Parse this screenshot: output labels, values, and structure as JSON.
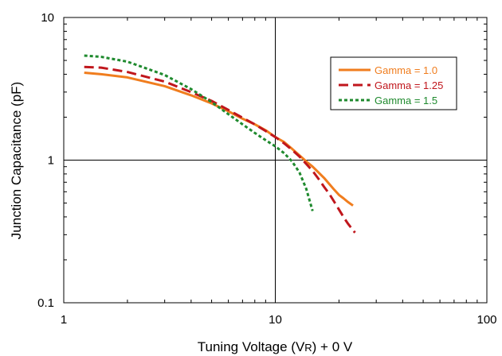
{
  "chart_data": {
    "type": "line",
    "xscale": "log",
    "yscale": "log",
    "xlim": [
      1,
      100
    ],
    "ylim": [
      0.1,
      10
    ],
    "xticks": [
      1,
      10,
      100
    ],
    "yticks": [
      0.1,
      1,
      10
    ],
    "xtick_labels": [
      "1",
      "10",
      "100"
    ],
    "ytick_labels": [
      "0.1",
      "1",
      "10"
    ],
    "xlabel_main": "Tuning Voltage (V",
    "xlabel_sub": "R",
    "xlabel_tail": ") + 0 V",
    "ylabel": "Junction Capacitance (pF)",
    "grid": "major lines at x=10 and y=1",
    "legend_position": "top-right",
    "series": [
      {
        "name": "Gamma = 1.0",
        "color": "#F07D1E",
        "style": "solid",
        "x": [
          1.25,
          1.5,
          2,
          3,
          4,
          5,
          6,
          7,
          8,
          9,
          10,
          11,
          12,
          13,
          14,
          15,
          16,
          17,
          18,
          19,
          20,
          21,
          22,
          23.3
        ],
        "y": [
          4.1,
          4.0,
          3.8,
          3.3,
          2.85,
          2.5,
          2.2,
          1.95,
          1.78,
          1.62,
          1.45,
          1.34,
          1.2,
          1.08,
          0.98,
          0.9,
          0.82,
          0.75,
          0.68,
          0.62,
          0.57,
          0.54,
          0.51,
          0.48
        ]
      },
      {
        "name": "Gamma = 1.25",
        "color": "#C0161C",
        "style": "dashed",
        "x": [
          1.25,
          1.5,
          2,
          3,
          4,
          5,
          6,
          7,
          8,
          9,
          10,
          11,
          12,
          13,
          14,
          15,
          16,
          17,
          18,
          19,
          20,
          21,
          22,
          23.8
        ],
        "y": [
          4.5,
          4.45,
          4.15,
          3.55,
          3.0,
          2.6,
          2.25,
          1.98,
          1.78,
          1.6,
          1.45,
          1.31,
          1.18,
          1.06,
          0.94,
          0.84,
          0.74,
          0.65,
          0.58,
          0.51,
          0.45,
          0.4,
          0.36,
          0.31
        ]
      },
      {
        "name": "Gamma = 1.5",
        "color": "#1F8A2E",
        "style": "dotted",
        "x": [
          1.25,
          1.5,
          2,
          3,
          4,
          5,
          6,
          7,
          8,
          9,
          10,
          11,
          12,
          13,
          14,
          15
        ],
        "y": [
          5.4,
          5.3,
          4.9,
          3.95,
          3.15,
          2.55,
          2.1,
          1.78,
          1.55,
          1.38,
          1.25,
          1.12,
          0.98,
          0.82,
          0.63,
          0.44
        ]
      }
    ]
  }
}
